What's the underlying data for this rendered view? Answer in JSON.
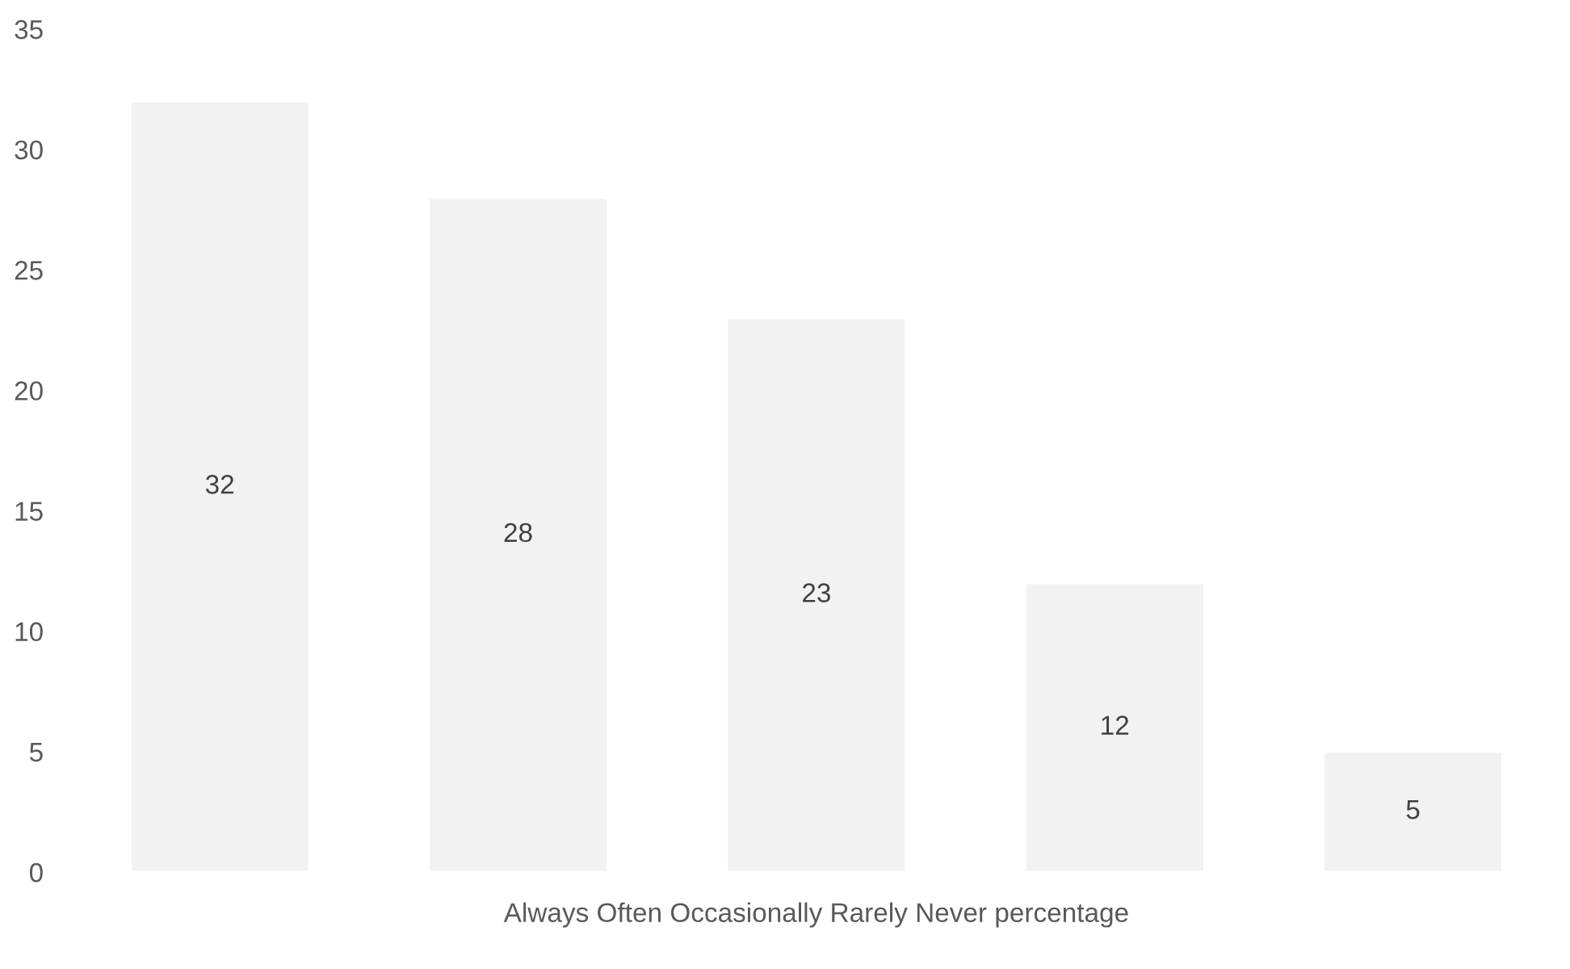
{
  "chart_data": {
    "type": "bar",
    "xlabel": "Always Often Occasionally Rarely Never percentage",
    "categories": [
      null,
      null,
      null,
      null,
      null
    ],
    "values": [
      32,
      28,
      23,
      12,
      5
    ],
    "color": "#f2f2f2",
    "ylim": [
      0,
      35
    ],
    "yticks": [
      0,
      5,
      10,
      15,
      20,
      25,
      30,
      35
    ],
    "data_labels": true,
    "grid": false,
    "legend": false
  }
}
